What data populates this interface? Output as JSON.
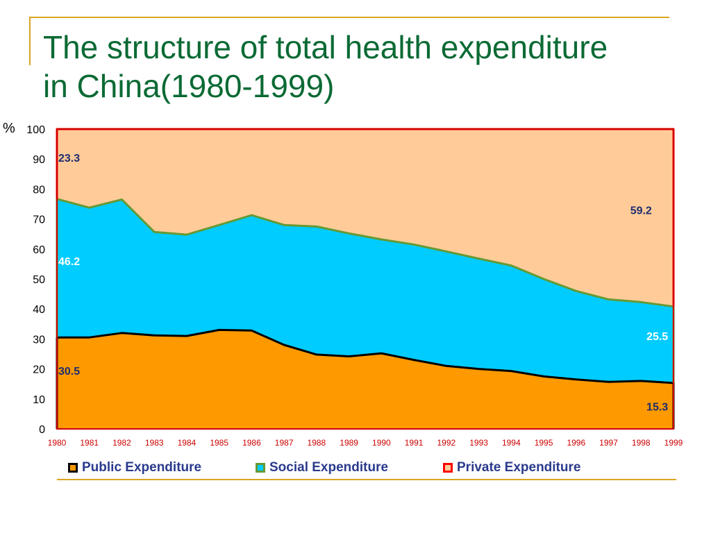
{
  "title": {
    "line1": "The structure of total health expenditure",
    "line2": "in China(1980-1999)"
  },
  "ylabel": "%",
  "chart_data": {
    "type": "area",
    "stacked": true,
    "title": "",
    "xlabel": "",
    "ylabel": "%",
    "ylim": [
      0,
      100
    ],
    "yticks": [
      0,
      10,
      20,
      30,
      40,
      50,
      60,
      70,
      80,
      90,
      100
    ],
    "grid": false,
    "legend_position": "bottom",
    "x": [
      "1980",
      "1981",
      "1982",
      "1983",
      "1984",
      "1985",
      "1986",
      "1987",
      "1988",
      "1989",
      "1990",
      "1991",
      "1992",
      "1993",
      "1994",
      "1995",
      "1996",
      "1997",
      "1998",
      "1999"
    ],
    "series": [
      {
        "name": "Public Expenditure",
        "fill": "#ff9900",
        "border": "#000000",
        "values": [
          30.5,
          30.5,
          32,
          31.2,
          31,
          33,
          32.8,
          28,
          24.8,
          24.2,
          25.2,
          23,
          21,
          20,
          19.3,
          17.5,
          16.5,
          15.7,
          16,
          15.3
        ]
      },
      {
        "name": "Social Expenditure",
        "fill": "#00ccff",
        "border": "#669933",
        "values": [
          46.2,
          43.3,
          44.5,
          34.5,
          33.8,
          35,
          38.5,
          40,
          42.7,
          41,
          38,
          38.5,
          38.2,
          36.8,
          35.2,
          32.5,
          29.5,
          27.5,
          26.3,
          25.5
        ]
      },
      {
        "name": "Private Expenditure",
        "fill": "#ffcc99",
        "border": "#ff0000",
        "values": [
          23.3,
          26.2,
          23.5,
          34.3,
          35.2,
          32,
          28.7,
          32,
          32.5,
          34.8,
          36.8,
          38.5,
          40.8,
          43.2,
          45.5,
          50,
          54,
          56.8,
          57.7,
          59.2
        ]
      }
    ],
    "annotations": [
      {
        "text": "23.3",
        "x": "1980",
        "y": 90.5,
        "color": "#1f2d6e",
        "align": "start"
      },
      {
        "text": "46.2",
        "x": "1980",
        "y": 56,
        "color": "#ffffff",
        "align": "start"
      },
      {
        "text": "30.5",
        "x": "1980",
        "y": 19.5,
        "color": "#1f2d6e",
        "align": "start"
      },
      {
        "text": "59.2",
        "x": "1998",
        "y": 73,
        "color": "#1f2d6e",
        "align": "middle"
      },
      {
        "text": "25.5",
        "x": "1998.5",
        "y": 31,
        "color": "#ffffff",
        "align": "middle"
      },
      {
        "text": "15.3",
        "x": "1998.5",
        "y": 7.5,
        "color": "#1f2d6e",
        "align": "middle"
      }
    ],
    "colors": {
      "plot_border": "#cc0000",
      "tick_label": "#cc0000",
      "axis_label": "#000000"
    }
  }
}
